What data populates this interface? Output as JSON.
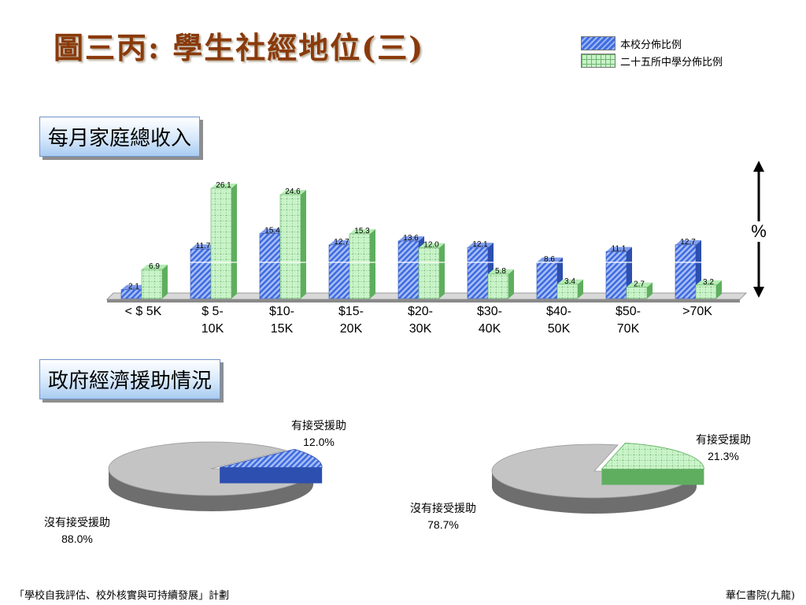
{
  "title": "圖三丙:  學生社經地位(三)",
  "legend": [
    "本校分佈比例",
    "二十五所中學分佈比例"
  ],
  "sections": [
    "每月家庭總收入",
    "政府經濟援助情況"
  ],
  "footer": {
    "left": "「學校自我評估、校外核實與可持續發展」計劃",
    "right": "華仁書院(九龍)"
  },
  "colors": {
    "school": "#3f6ee0",
    "schools25": "#9ee09e",
    "pie_rest": "#c4c4c4",
    "title": "#8a3a0a"
  },
  "chart_data": [
    {
      "type": "bar",
      "title": "每月家庭總收入",
      "ylabel": "%",
      "categories": [
        "< $ 5K",
        "$ 5-\n10K",
        "$10-\n15K",
        "$15-\n20K",
        "$20-\n30K",
        "$30-\n40K",
        "$40-\n50K",
        "$50-\n70K",
        ">70K"
      ],
      "series": [
        {
          "name": "本校分佈比例",
          "values": [
            2.1,
            11.7,
            15.4,
            12.7,
            13.6,
            12.1,
            8.6,
            11.1,
            12.7
          ]
        },
        {
          "name": "二十五所中學分佈比例",
          "values": [
            6.9,
            26.1,
            24.6,
            15.3,
            12.0,
            5.8,
            3.4,
            2.7,
            3.2
          ]
        }
      ],
      "ylim": [
        0,
        28
      ],
      "grid": false,
      "legend": "top-right"
    },
    {
      "type": "pie",
      "title": "",
      "labels": [
        "有接受援助",
        "沒有接受援助"
      ],
      "values": [
        12.0,
        88.0
      ],
      "value_labels": [
        "12.0%",
        "88.0%"
      ]
    },
    {
      "type": "pie",
      "title": "",
      "labels": [
        "有接受援助",
        "沒有接受援助"
      ],
      "values": [
        21.3,
        78.7
      ],
      "value_labels": [
        "21.3%",
        "78.7%"
      ]
    }
  ]
}
